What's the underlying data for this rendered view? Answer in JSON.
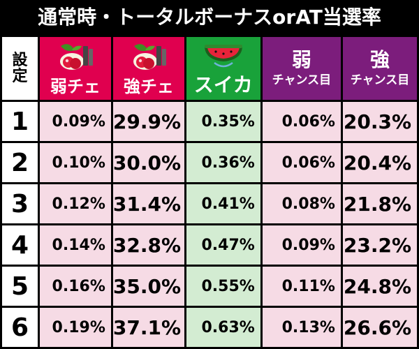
{
  "title": "通常時・トータルボーナスorAT当選率",
  "headers": {
    "setting": [
      "設",
      "定"
    ],
    "weak_cherry": "弱チェ",
    "strong_cherry": "強チェ",
    "suika": "スイカ",
    "weak_chance_top": "弱",
    "weak_chance_bottom": "チャンス目",
    "strong_chance_top": "強",
    "strong_chance_bottom": "チャンス目"
  },
  "rows": [
    {
      "setting": "1",
      "weak_cherry": "0.09%",
      "strong_cherry": "29.9%",
      "suika": "0.35%",
      "weak_chance": "0.06%",
      "strong_chance": "20.3%"
    },
    {
      "setting": "2",
      "weak_cherry": "0.10%",
      "strong_cherry": "30.0%",
      "suika": "0.36%",
      "weak_chance": "0.06%",
      "strong_chance": "20.4%"
    },
    {
      "setting": "3",
      "weak_cherry": "0.12%",
      "strong_cherry": "31.4%",
      "suika": "0.41%",
      "weak_chance": "0.08%",
      "strong_chance": "21.8%"
    },
    {
      "setting": "4",
      "weak_cherry": "0.14%",
      "strong_cherry": "32.8%",
      "suika": "0.47%",
      "weak_chance": "0.09%",
      "strong_chance": "23.2%"
    },
    {
      "setting": "5",
      "weak_cherry": "0.16%",
      "strong_cherry": "35.0%",
      "suika": "0.55%",
      "weak_chance": "0.11%",
      "strong_chance": "24.8%"
    },
    {
      "setting": "6",
      "weak_cherry": "0.19%",
      "strong_cherry": "37.1%",
      "suika": "0.63%",
      "weak_chance": "0.13%",
      "strong_chance": "26.6%"
    }
  ],
  "icons": {
    "weak_cherry": "cherry-icon",
    "strong_cherry": "cherry-icon",
    "suika": "watermelon-icon"
  },
  "colors": {
    "background": "#000000",
    "cherry_header": "#e0004f",
    "suika_header": "#19a23a",
    "chance_header": "#7c1d7c",
    "pink_cell": "#f6dbe5",
    "green_cell": "#d3ecd2"
  }
}
